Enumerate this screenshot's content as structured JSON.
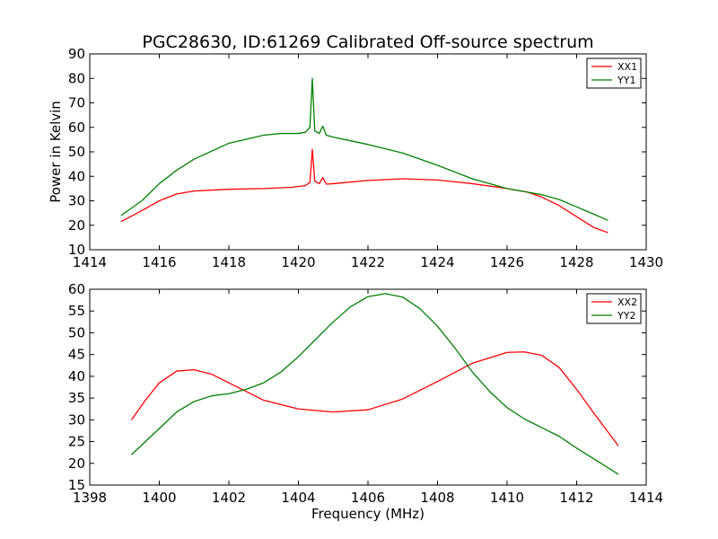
{
  "figure": {
    "title": "PGC28630, ID:61269 Calibrated Off-source spectrum"
  },
  "chart_data": [
    {
      "type": "line",
      "title": "PGC28630, ID:61269 Calibrated Off-source spectrum",
      "xlabel": "",
      "ylabel": "Power in Kelvin",
      "xlim": [
        1414,
        1430
      ],
      "ylim": [
        10,
        90
      ],
      "xticks": [
        1414,
        1416,
        1418,
        1420,
        1422,
        1424,
        1426,
        1428,
        1430
      ],
      "yticks": [
        10,
        20,
        30,
        40,
        50,
        60,
        70,
        80,
        90
      ],
      "grid": false,
      "legend": "top-right",
      "series": [
        {
          "name": "XX1",
          "color": "#ff0000",
          "x": [
            1414.9,
            1415.5,
            1416,
            1416.5,
            1417,
            1418,
            1419,
            1419.8,
            1420.2,
            1420.33,
            1420.4,
            1420.47,
            1420.6,
            1420.7,
            1420.8,
            1421,
            1422,
            1423,
            1424,
            1425,
            1426,
            1426.6,
            1427,
            1427.5,
            1428,
            1428.5,
            1428.9
          ],
          "values": [
            21.5,
            26,
            30,
            32.8,
            34,
            34.7,
            35,
            35.5,
            36.2,
            37.5,
            51,
            38,
            37,
            39.5,
            36.8,
            37,
            38.3,
            39,
            38.5,
            37,
            35,
            33.5,
            31.5,
            28,
            23.5,
            19,
            17
          ]
        },
        {
          "name": "YY1",
          "color": "#008000",
          "x": [
            1414.9,
            1415.5,
            1416,
            1416.5,
            1417,
            1418,
            1419,
            1419.5,
            1420,
            1420.2,
            1420.33,
            1420.4,
            1420.47,
            1420.6,
            1420.7,
            1420.8,
            1421,
            1422,
            1423,
            1424,
            1425,
            1426,
            1426.6,
            1427,
            1427.5,
            1428,
            1428.5,
            1428.9
          ],
          "values": [
            24,
            30,
            37,
            42.5,
            47,
            53.5,
            56.8,
            57.5,
            57.5,
            58,
            60,
            80,
            58.5,
            57.5,
            60.5,
            56.8,
            56,
            53,
            49.5,
            44.5,
            39,
            35,
            33.5,
            32.5,
            30.5,
            27.5,
            24.5,
            22
          ]
        }
      ]
    },
    {
      "type": "line",
      "title": "",
      "xlabel": "Frequency (MHz)",
      "ylabel": "",
      "xlim": [
        1398,
        1414
      ],
      "ylim": [
        15,
        60
      ],
      "xticks": [
        1398,
        1400,
        1402,
        1404,
        1406,
        1408,
        1410,
        1412,
        1414
      ],
      "yticks": [
        15,
        20,
        25,
        30,
        35,
        40,
        45,
        50,
        55,
        60
      ],
      "grid": false,
      "legend": "top-right",
      "series": [
        {
          "name": "XX2",
          "color": "#ff0000",
          "x": [
            1399.2,
            1399.6,
            1400,
            1400.5,
            1401,
            1401.5,
            1402,
            1402.5,
            1403,
            1404,
            1405,
            1406,
            1407,
            1408,
            1409,
            1410,
            1410.5,
            1411,
            1411.5,
            1412,
            1412.5,
            1413.2
          ],
          "values": [
            30,
            34.5,
            38.5,
            41.2,
            41.5,
            40.5,
            38.5,
            36.5,
            34.5,
            32.5,
            31.8,
            32.3,
            34.8,
            38.8,
            43,
            45.5,
            45.6,
            44.8,
            42,
            37,
            31.5,
            24
          ]
        },
        {
          "name": "YY2",
          "color": "#008000",
          "x": [
            1399.2,
            1400,
            1400.5,
            1401,
            1401.5,
            1402,
            1402.5,
            1403,
            1403.5,
            1404,
            1404.5,
            1405,
            1405.5,
            1406,
            1406.5,
            1407,
            1407.5,
            1408,
            1408.5,
            1409,
            1409.5,
            1410,
            1410.5,
            1411,
            1411.5,
            1412,
            1412.5,
            1413.2
          ],
          "values": [
            22,
            28,
            31.8,
            34.2,
            35.5,
            36,
            37,
            38.5,
            41,
            44.5,
            48.5,
            52.5,
            56,
            58.3,
            59,
            58.2,
            55.5,
            51.5,
            46.5,
            41,
            36.5,
            32.8,
            30.2,
            28.2,
            26.2,
            23.5,
            21,
            17.5
          ]
        }
      ]
    }
  ]
}
